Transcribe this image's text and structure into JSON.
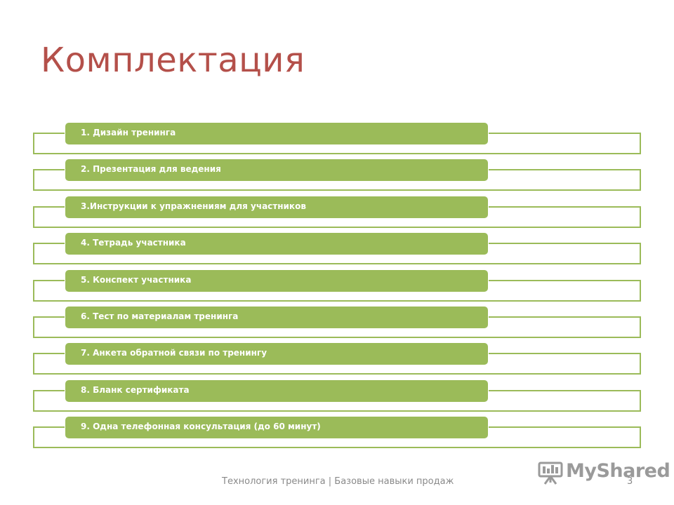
{
  "slide": {
    "title": "Комплектация",
    "items": [
      "1. Дизайн тренинга",
      "2. Презентация для ведения",
      "3.Инструкции к упражнениям для участников",
      "4. Тетрадь участника",
      "5. Конспект участника",
      "6. Тест по материалам тренинга",
      "7. Анкета обратной связи по тренингу",
      "8. Бланк сертификата",
      "9. Одна телефонная консультация (до 60 минут)"
    ],
    "footer": "Технология тренинга | Базовые навыки продаж",
    "page_number": "3"
  },
  "watermark": {
    "text": "MyShared",
    "icon": "presentation-screen-icon"
  },
  "colors": {
    "title": "#b4504a",
    "accent": "#9bbb59",
    "footer": "#8a8a8a"
  }
}
